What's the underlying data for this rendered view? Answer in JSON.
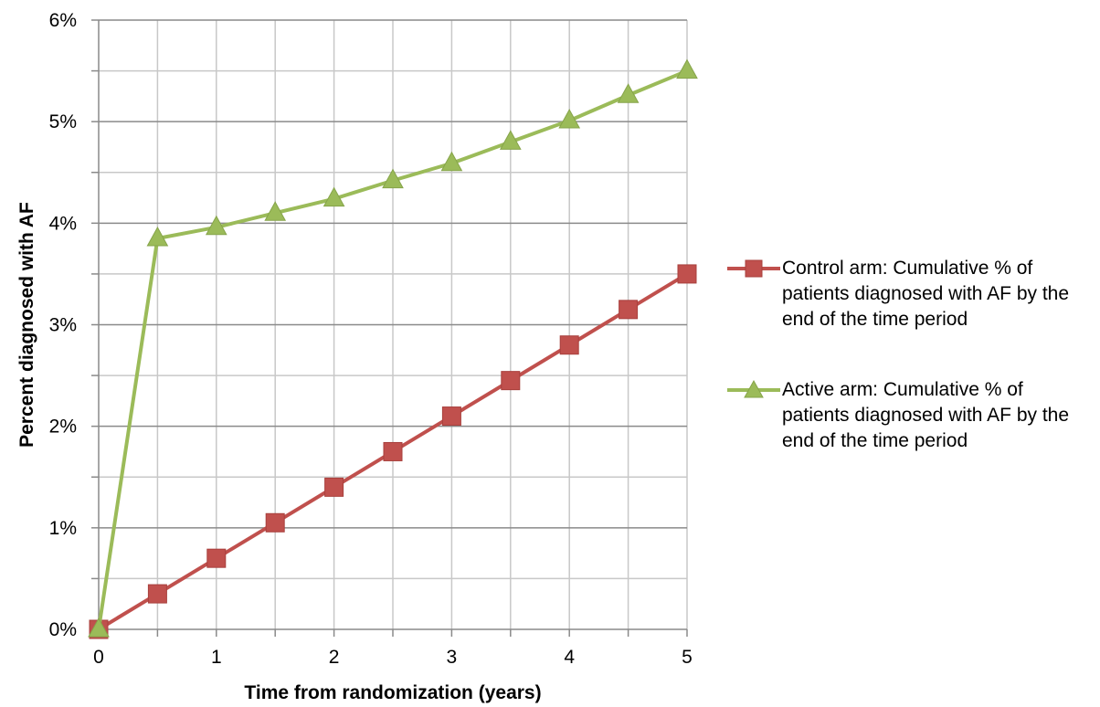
{
  "chart_data": {
    "type": "line",
    "title": "",
    "xlabel": "Time from randomization (years)",
    "ylabel": "Percent diagnosed with AF",
    "x": [
      0,
      0.5,
      1,
      1.5,
      2,
      2.5,
      3,
      3.5,
      4,
      4.5,
      5
    ],
    "xlim": [
      0,
      5
    ],
    "ylim": [
      0,
      6
    ],
    "x_tick_labels": [
      "0",
      "1",
      "2",
      "3",
      "4",
      "5"
    ],
    "y_tick_labels": [
      "0%",
      "1%",
      "2%",
      "3%",
      "4%",
      "5%",
      "6%"
    ],
    "grid": true,
    "legend_position": "right",
    "series": [
      {
        "name": "Control arm: Cumulative % of patients diagnosed with AF by the end of the time period",
        "values": [
          0,
          0.35,
          0.7,
          1.05,
          1.4,
          1.75,
          2.1,
          2.45,
          2.8,
          3.15,
          3.5
        ],
        "color": "#C0504D",
        "marker": "square"
      },
      {
        "name": "Active arm: Cumulative % of patients diagnosed with AF by the end of the time period",
        "values": [
          0,
          3.85,
          3.96,
          4.1,
          4.24,
          4.42,
          4.59,
          4.8,
          5.01,
          5.26,
          5.5
        ],
        "color": "#9BBB59",
        "marker": "triangle"
      }
    ]
  }
}
